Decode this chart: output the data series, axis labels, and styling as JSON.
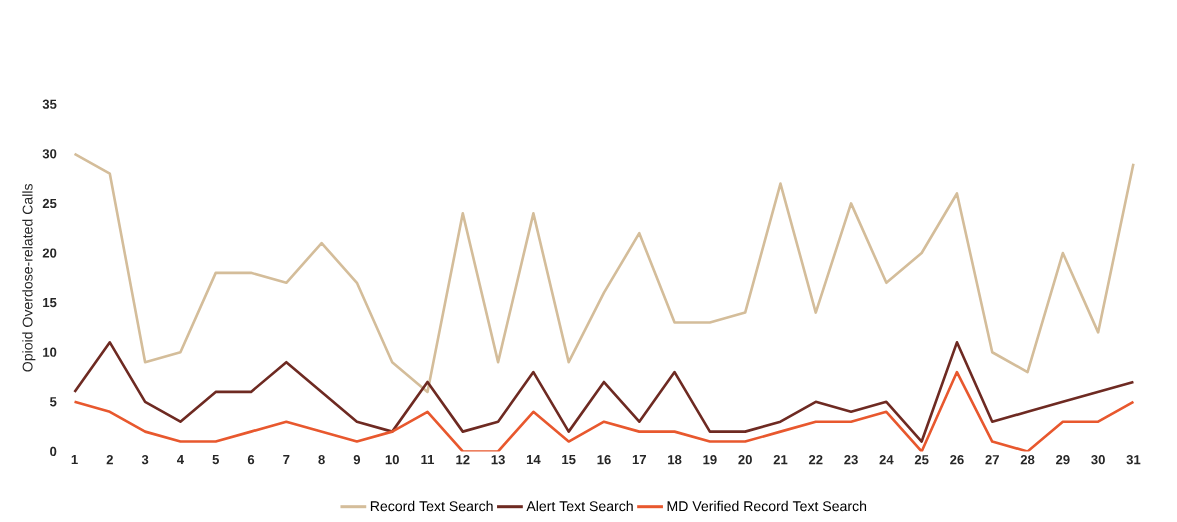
{
  "chart_data": {
    "type": "line",
    "ylabel": "Opioid Overdose-related Calls",
    "categories": [
      "1",
      "2",
      "3",
      "4",
      "5",
      "6",
      "7",
      "8",
      "9",
      "10",
      "11",
      "12",
      "13",
      "14",
      "15",
      "16",
      "17",
      "18",
      "19",
      "20",
      "21",
      "22",
      "23",
      "24",
      "25",
      "26",
      "27",
      "28",
      "29",
      "30",
      "31"
    ],
    "series": [
      {
        "name": "Record Text Search",
        "color": "#d4bd9a",
        "values": [
          30,
          28,
          9,
          10,
          18,
          18,
          17,
          21,
          17,
          9,
          6,
          24,
          9,
          24,
          9,
          16,
          22,
          13,
          13,
          14,
          27,
          14,
          25,
          17,
          20,
          26,
          10,
          8,
          20,
          12,
          29
        ]
      },
      {
        "name": "Alert Text Search",
        "color": "#6e2a22",
        "values": [
          6,
          11,
          5,
          3,
          6,
          6,
          9,
          6,
          3,
          2,
          7,
          2,
          3,
          8,
          2,
          7,
          3,
          8,
          2,
          2,
          3,
          5,
          4,
          5,
          1,
          11,
          3,
          4,
          5,
          6,
          7
        ]
      },
      {
        "name": "MD Verified Record Text Search",
        "color": "#e8582e",
        "values": [
          5,
          4,
          2,
          1,
          1,
          2,
          3,
          2,
          1,
          2,
          4,
          0,
          0,
          4,
          1,
          3,
          2,
          2,
          1,
          1,
          2,
          3,
          3,
          4,
          0,
          8,
          1,
          0,
          3,
          3,
          5
        ]
      }
    ],
    "ylim": [
      0,
      35
    ],
    "yticks": [
      0,
      5,
      10,
      15,
      20,
      25,
      30,
      35
    ],
    "grid": false,
    "legend": "bottom"
  }
}
